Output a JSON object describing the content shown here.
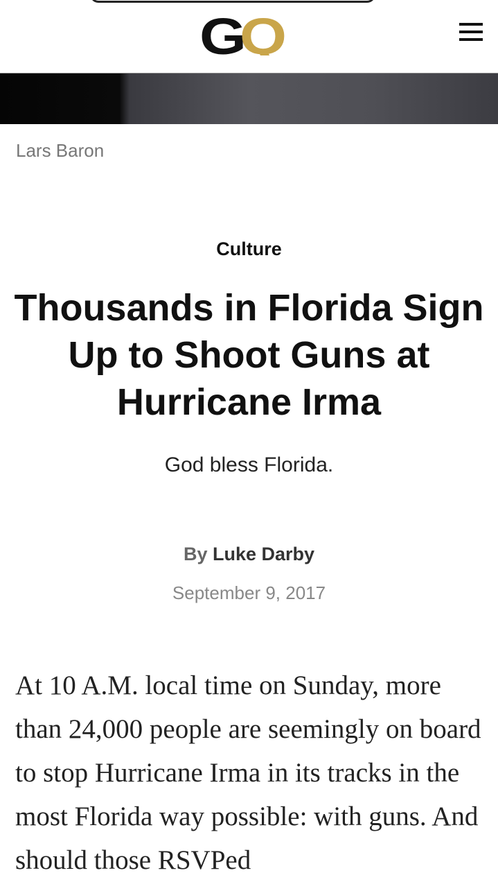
{
  "header": {
    "logo_text": "GQ",
    "logo_colors": {
      "g": "#111111",
      "q": "#C9A54A"
    },
    "menu_icon": "hamburger-icon"
  },
  "hero": {
    "photo_credit": "Lars Baron"
  },
  "article": {
    "category": "Culture",
    "title": "Thousands in Florida Sign Up to Shoot Guns at Hurricane Irma",
    "subtitle": "God bless Florida.",
    "byline_prefix": "By",
    "author": "Luke Darby",
    "date": "September 9, 2017",
    "body": "At 10 A.M. local time on Sunday, more than 24,000 people are seemingly on board to stop Hurricane Irma in its tracks in the most Florida way possible: with guns. And should those RSVPed"
  }
}
